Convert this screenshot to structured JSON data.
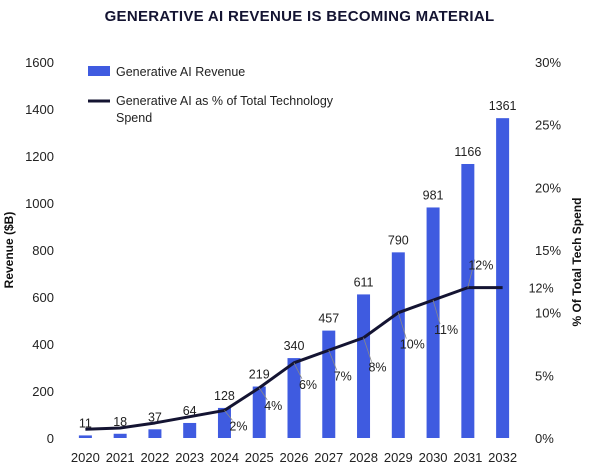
{
  "chart_data": {
    "type": "bar",
    "title": "GENERATIVE AI REVENUE IS BECOMING MATERIAL",
    "categories": [
      "2020",
      "2021",
      "2022",
      "2023",
      "2024",
      "2025",
      "2026",
      "2027",
      "2028",
      "2029",
      "2030",
      "2031",
      "2032"
    ],
    "series": [
      {
        "name": "Generative AI Revenue",
        "type": "bar",
        "axis": "left",
        "color": "#3f5be0",
        "values": [
          11,
          18,
          37,
          64,
          128,
          219,
          340,
          457,
          611,
          790,
          981,
          1166,
          1361
        ],
        "labels": [
          "11",
          "18",
          "37",
          "64",
          "128",
          "219",
          "340",
          "457",
          "611",
          "790",
          "981",
          "1166",
          "1361"
        ]
      },
      {
        "name": "Generative AI as % of Total Technology Spend",
        "type": "line",
        "axis": "right",
        "color": "#141432",
        "values": [
          0.7,
          0.8,
          1.2,
          1.7,
          2.2,
          4,
          6,
          7,
          8,
          10,
          11,
          12,
          12
        ],
        "point_labels": [
          {
            "index": 4,
            "text": "2%"
          },
          {
            "index": 5,
            "text": "4%"
          },
          {
            "index": 6,
            "text": "6%"
          },
          {
            "index": 7,
            "text": "7%"
          },
          {
            "index": 8,
            "text": "8%"
          },
          {
            "index": 9,
            "text": "10%"
          },
          {
            "index": 10,
            "text": "11%"
          },
          {
            "index": 11,
            "text": "12%"
          },
          {
            "index": 12,
            "text": "12%"
          }
        ]
      }
    ],
    "y_left": {
      "label": "Revenue ($B)",
      "lim": [
        0,
        1600
      ],
      "ticks": [
        "0",
        "200",
        "400",
        "600",
        "800",
        "1000",
        "1200",
        "1400",
        "1600"
      ]
    },
    "y_right": {
      "label": "% Of Total Tech Spend",
      "lim": [
        0,
        30
      ],
      "ticks": [
        "0%",
        "5%",
        "10%",
        "15%",
        "20%",
        "25%",
        "30%"
      ]
    },
    "legend": {
      "position": "top-left",
      "items": [
        "Generative AI Revenue",
        "Generative AI as % of Total Technology Spend"
      ]
    },
    "grid": false
  }
}
